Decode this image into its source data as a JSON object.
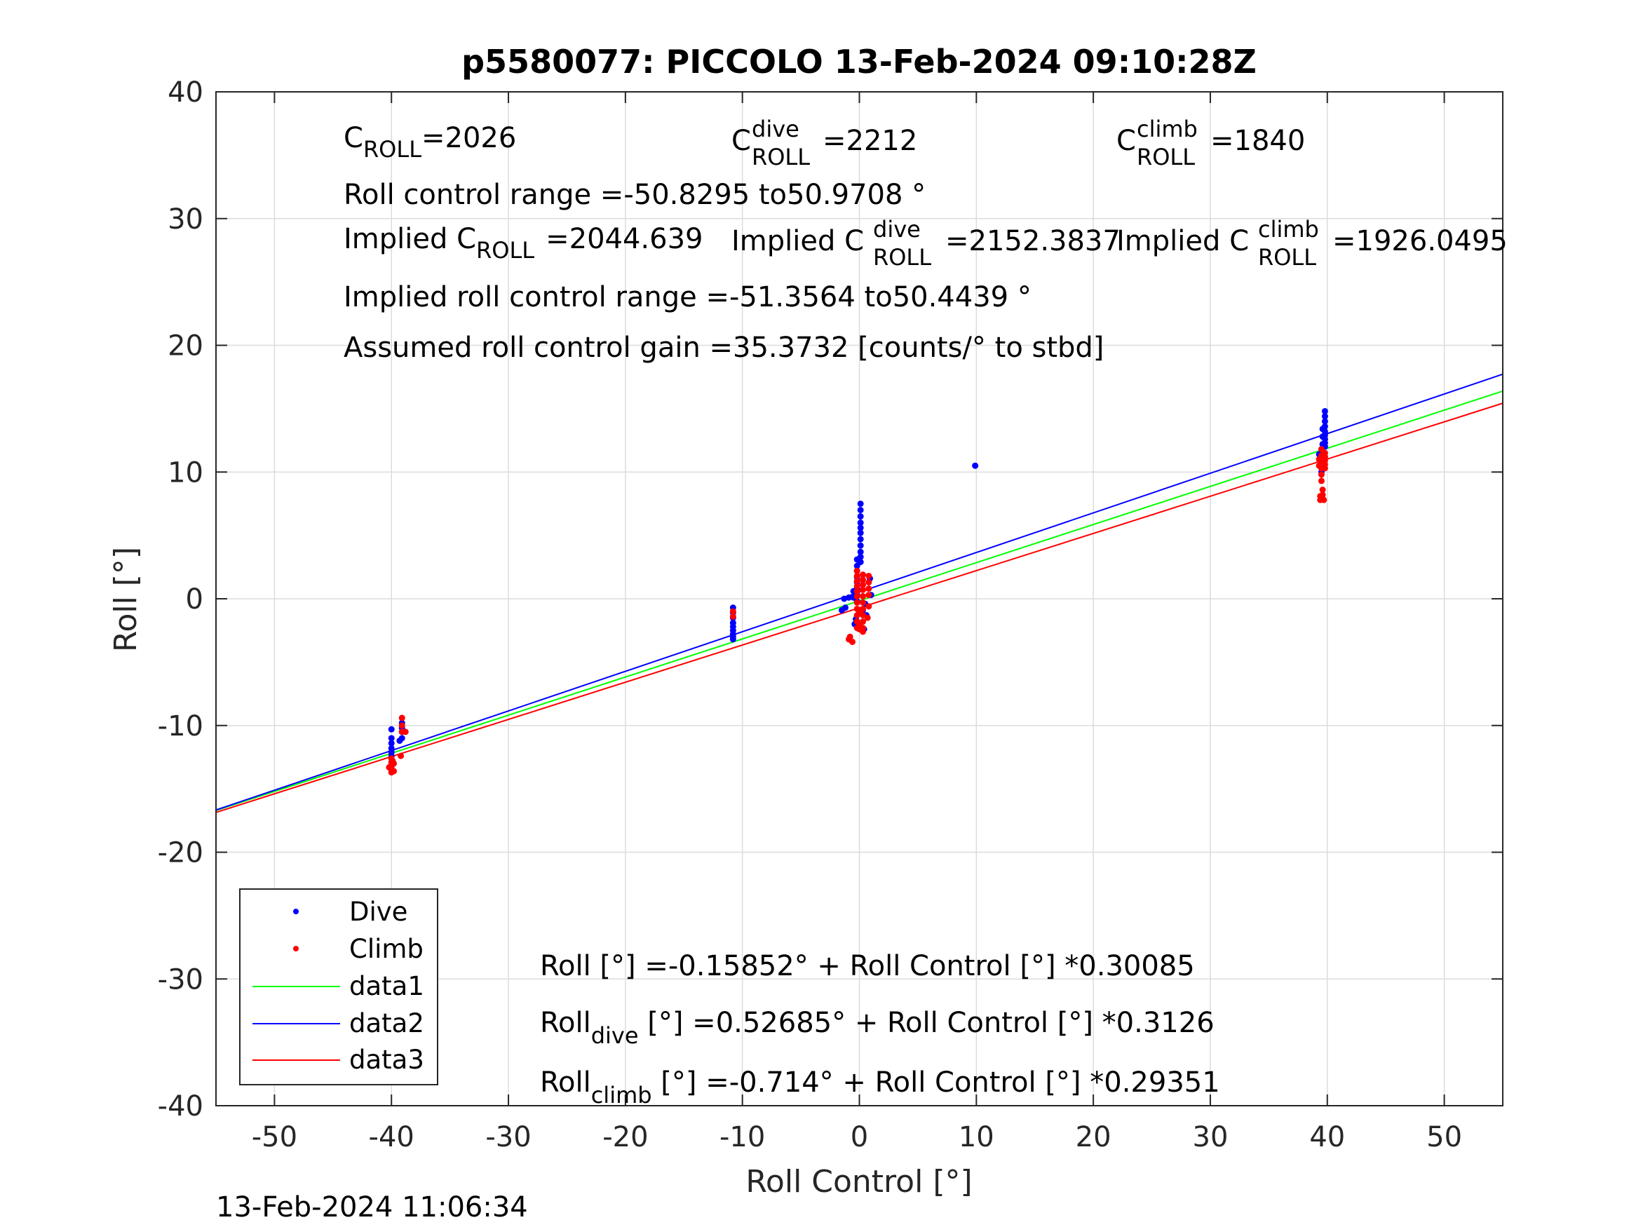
{
  "chart_data": {
    "type": "scatter",
    "title": "p5580077: PICCOLO 13-Feb-2024 09:10:28Z",
    "xlabel": "Roll Control [°]",
    "ylabel": "Roll [°]",
    "xlim": [
      -55,
      55
    ],
    "ylim": [
      -40,
      40
    ],
    "xticks": [
      -50,
      -40,
      -30,
      -20,
      -10,
      0,
      10,
      20,
      30,
      40,
      50
    ],
    "yticks": [
      -40,
      -30,
      -20,
      -10,
      0,
      10,
      20,
      30,
      40
    ],
    "grid": true,
    "legend_position": "bottom-left",
    "legend": [
      "Dive",
      "Climb",
      "data1",
      "data2",
      "data3"
    ],
    "colors": {
      "dive": "#0000ff",
      "climb": "#ff0000",
      "data1": "#00ff00",
      "data2": "#0000ff",
      "data3": "#ff0000",
      "median": "#000000"
    },
    "series": [
      {
        "name": "Dive",
        "kind": "scatter",
        "points": [
          [
            -40.0,
            -10.3
          ],
          [
            -40.0,
            -11.0
          ],
          [
            -40.0,
            -11.4
          ],
          [
            -40.0,
            -11.8
          ],
          [
            -40.0,
            -12.1
          ],
          [
            -40.0,
            -12.4
          ],
          [
            -39.1,
            -9.8
          ],
          [
            -39.1,
            -10.2
          ],
          [
            -39.1,
            -10.5
          ],
          [
            -39.1,
            -11.0
          ],
          [
            -39.3,
            -11.2
          ],
          [
            -10.8,
            -0.7
          ],
          [
            -10.8,
            -1.1
          ],
          [
            -10.8,
            -1.5
          ],
          [
            -10.8,
            -1.9
          ],
          [
            -10.8,
            -2.2
          ],
          [
            -10.8,
            -2.5
          ],
          [
            -10.8,
            -2.8
          ],
          [
            -10.8,
            -3.0
          ],
          [
            -10.8,
            -3.2
          ],
          [
            0.1,
            7.5
          ],
          [
            0.1,
            7.0
          ],
          [
            0.1,
            6.5
          ],
          [
            0.1,
            6.0
          ],
          [
            0.1,
            5.6
          ],
          [
            0.1,
            5.2
          ],
          [
            0.1,
            4.7
          ],
          [
            0.1,
            4.2
          ],
          [
            0.1,
            3.7
          ],
          [
            0.1,
            3.3
          ],
          [
            0.1,
            2.9
          ],
          [
            -0.2,
            3.1
          ],
          [
            -0.2,
            2.6
          ],
          [
            -0.2,
            2.2
          ],
          [
            -0.2,
            1.7
          ],
          [
            -0.2,
            1.3
          ],
          [
            -0.2,
            0.8
          ],
          [
            -0.2,
            0.3
          ],
          [
            -0.2,
            -0.2
          ],
          [
            -0.5,
            0.6
          ],
          [
            -0.5,
            0.1
          ],
          [
            -0.9,
            0.1
          ],
          [
            -1.3,
            0.0
          ],
          [
            -1.2,
            -0.7
          ],
          [
            -1.5,
            -0.9
          ],
          [
            0.9,
            1.6
          ],
          [
            1.0,
            0.3
          ],
          [
            0.5,
            -0.4
          ],
          [
            0.3,
            -0.9
          ],
          [
            0.6,
            -1.3
          ],
          [
            -0.3,
            -1.6
          ],
          [
            -0.4,
            -2.0
          ],
          [
            0.4,
            -2.4
          ],
          [
            9.9,
            10.5
          ],
          [
            39.8,
            14.8
          ],
          [
            39.8,
            14.4
          ],
          [
            39.8,
            14.0
          ],
          [
            39.8,
            13.6
          ],
          [
            39.8,
            13.2
          ],
          [
            39.8,
            12.9
          ],
          [
            39.8,
            12.6
          ],
          [
            39.8,
            12.3
          ],
          [
            39.8,
            12.0
          ],
          [
            39.6,
            13.4
          ],
          [
            39.6,
            12.8
          ],
          [
            39.6,
            12.2
          ],
          [
            39.5,
            11.8
          ],
          [
            39.5,
            11.3
          ],
          [
            39.5,
            10.6
          ],
          [
            39.5,
            10.0
          ],
          [
            39.3,
            11.4
          ]
        ]
      },
      {
        "name": "Climb",
        "kind": "scatter",
        "points": [
          [
            -40.0,
            -12.6
          ],
          [
            -40.0,
            -12.9
          ],
          [
            -40.0,
            -13.1
          ],
          [
            -40.0,
            -13.3
          ],
          [
            -40.0,
            -13.5
          ],
          [
            -40.0,
            -13.7
          ],
          [
            -40.2,
            -13.3
          ],
          [
            -39.8,
            -13.0
          ],
          [
            -39.8,
            -13.6
          ],
          [
            -39.9,
            -12.8
          ],
          [
            -39.1,
            -9.4
          ],
          [
            -39.1,
            -10.0
          ],
          [
            -39.1,
            -10.5
          ],
          [
            -38.8,
            -10.5
          ],
          [
            -39.2,
            -12.4
          ],
          [
            -10.8,
            -1.0
          ],
          [
            -10.8,
            -1.4
          ],
          [
            -0.8,
            -3.0
          ],
          [
            -0.6,
            -3.4
          ],
          [
            -0.9,
            -3.2
          ],
          [
            -0.2,
            2.2
          ],
          [
            -0.2,
            1.8
          ],
          [
            -0.2,
            1.4
          ],
          [
            -0.2,
            1.0
          ],
          [
            -0.2,
            0.6
          ],
          [
            -0.2,
            0.2
          ],
          [
            -0.2,
            -0.3
          ],
          [
            -0.2,
            -0.8
          ],
          [
            -0.2,
            -1.3
          ],
          [
            -0.2,
            -1.8
          ],
          [
            -0.2,
            -2.3
          ],
          [
            0.3,
            1.9
          ],
          [
            0.3,
            1.5
          ],
          [
            0.3,
            1.1
          ],
          [
            0.3,
            0.7
          ],
          [
            0.3,
            0.2
          ],
          [
            0.3,
            -0.3
          ],
          [
            0.3,
            -0.8
          ],
          [
            0.3,
            -1.3
          ],
          [
            0.3,
            -1.8
          ],
          [
            0.3,
            -2.3
          ],
          [
            0.3,
            -2.6
          ],
          [
            0.8,
            1.8
          ],
          [
            0.8,
            1.3
          ],
          [
            0.8,
            0.8
          ],
          [
            0.8,
            0.3
          ],
          [
            0.8,
            -0.6
          ],
          [
            0.7,
            -1.5
          ],
          [
            0.0,
            -1.0
          ],
          [
            0.0,
            -2.0
          ],
          [
            0.0,
            -2.4
          ],
          [
            39.8,
            11.5
          ],
          [
            39.8,
            11.2
          ],
          [
            39.8,
            10.9
          ],
          [
            39.8,
            10.6
          ],
          [
            39.8,
            10.3
          ],
          [
            39.5,
            11.8
          ],
          [
            39.5,
            11.3
          ],
          [
            39.5,
            10.8
          ],
          [
            39.5,
            10.3
          ],
          [
            39.5,
            9.8
          ],
          [
            39.5,
            9.3
          ],
          [
            39.3,
            11.0
          ],
          [
            39.3,
            10.5
          ],
          [
            39.6,
            8.6
          ],
          [
            39.6,
            8.2
          ],
          [
            39.6,
            7.9
          ],
          [
            39.4,
            8.1
          ],
          [
            39.4,
            7.8
          ],
          [
            39.7,
            7.8
          ]
        ]
      },
      {
        "name": "data1",
        "kind": "line",
        "intercept": -0.15852,
        "slope": 0.30085
      },
      {
        "name": "data2",
        "kind": "line",
        "intercept": 0.52685,
        "slope": 0.3126
      },
      {
        "name": "data3",
        "kind": "line",
        "intercept": -0.714,
        "slope": 0.29351
      }
    ]
  },
  "annotations": {
    "c_roll": {
      "base": "C",
      "sub": "ROLL",
      "value": "=2026"
    },
    "c_roll_dive": {
      "base": "C",
      "sup": "dive",
      "sub": "ROLL",
      "value": "=2212"
    },
    "c_roll_climb": {
      "base": "C",
      "sup": "climb",
      "sub": "ROLL",
      "value": "=1840"
    },
    "roll_control_range": "Roll control range =-50.8295 to50.9708 °",
    "implied_c_roll": {
      "prefix": "Implied C",
      "sub": "ROLL",
      "value": "=2044.639"
    },
    "implied_c_roll_dive": {
      "prefix": "Implied C",
      "sup": "dive",
      "sub": "ROLL",
      "value": "=2152.3837"
    },
    "implied_c_roll_climb": {
      "prefix": "Implied C",
      "sup": "climb",
      "sub": "ROLL",
      "value": "=1926.0495"
    },
    "implied_range": "Implied roll control range =-51.3564 to50.4439 °",
    "assumed_gain": "Assumed roll control gain =35.3732 [counts/° to stbd]",
    "eq_all": "Roll [°] =-0.15852° + Roll Control [°] *0.30085",
    "eq_dive": {
      "base": "Roll",
      "sub": "dive",
      "rest": " [°] =0.52685° + Roll Control [°] *0.3126"
    },
    "eq_climb": {
      "base": "Roll",
      "sub": "climb",
      "rest": " [°] =-0.714° + Roll Control [°] *0.29351"
    }
  },
  "footer": {
    "timestamp": "13-Feb-2024 11:06:34"
  }
}
